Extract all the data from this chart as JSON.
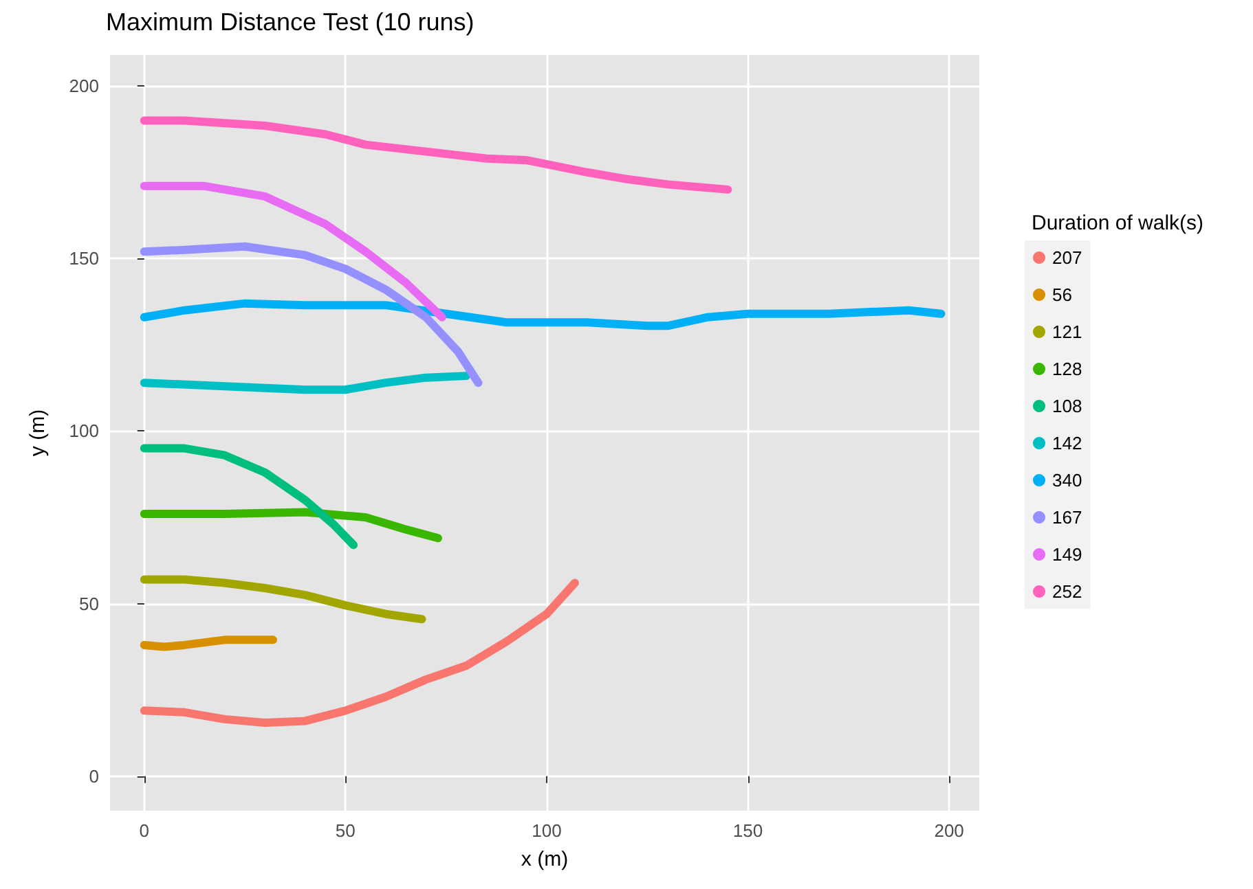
{
  "chart_data": {
    "type": "line",
    "title": "Maximum Distance Test (10 runs)",
    "xlabel": "x (m)",
    "ylabel": "y (m)",
    "legend_title": "Duration of walk(s)",
    "legend": "right",
    "grid": true,
    "marker": "none",
    "line_style": "solid",
    "xlim": [
      -8.5,
      207.5
    ],
    "ylim": [
      -10,
      209
    ],
    "xticks": [
      0,
      50,
      100,
      150,
      200
    ],
    "yticks": [
      0,
      50,
      100,
      150,
      200
    ],
    "series": [
      {
        "name": "207",
        "color": "#f8766d",
        "x": [
          0,
          10,
          20,
          30,
          40,
          50,
          60,
          70,
          80,
          90,
          100,
          107
        ],
        "values": [
          19,
          18.5,
          16.5,
          15.5,
          16,
          19,
          23,
          28,
          32,
          39,
          47,
          56
        ]
      },
      {
        "name": "56",
        "color": "#d89000",
        "x": [
          0,
          5,
          10,
          20,
          32
        ],
        "values": [
          38,
          37.5,
          38,
          39.5,
          39.5
        ]
      },
      {
        "name": "121",
        "color": "#a3a500",
        "x": [
          0,
          10,
          20,
          30,
          40,
          50,
          60,
          69
        ],
        "values": [
          57,
          57,
          56,
          54.5,
          52.5,
          49.5,
          47,
          45.5
        ]
      },
      {
        "name": "128",
        "color": "#39b600",
        "x": [
          0,
          20,
          40,
          55,
          65,
          73
        ],
        "values": [
          76,
          76,
          76.5,
          75,
          71.5,
          69
        ]
      },
      {
        "name": "108",
        "color": "#00bf7d",
        "x": [
          0,
          10,
          20,
          30,
          40,
          47,
          52
        ],
        "values": [
          95,
          95,
          93,
          88,
          80,
          73,
          67
        ]
      },
      {
        "name": "142",
        "color": "#00bfc4",
        "x": [
          0,
          20,
          40,
          50,
          60,
          70,
          80
        ],
        "values": [
          114,
          113,
          112,
          112,
          114,
          115.5,
          116
        ]
      },
      {
        "name": "340",
        "color": "#00b0f6",
        "x": [
          0,
          10,
          25,
          40,
          60,
          75,
          90,
          110,
          125,
          130,
          140,
          150,
          170,
          190,
          198
        ],
        "values": [
          133,
          135,
          137,
          136.5,
          136.5,
          134,
          131.5,
          131.5,
          130.5,
          130.5,
          133,
          134,
          134,
          135,
          134
        ]
      },
      {
        "name": "167",
        "color": "#9590ff",
        "x": [
          0,
          10,
          25,
          40,
          50,
          60,
          70,
          78,
          83
        ],
        "values": [
          152,
          152.5,
          153.5,
          151,
          147,
          141,
          133,
          123,
          114
        ]
      },
      {
        "name": "149",
        "color": "#e76bf3",
        "x": [
          0,
          15,
          30,
          45,
          55,
          65,
          74
        ],
        "values": [
          171,
          171,
          168,
          160,
          152,
          143,
          133
        ]
      },
      {
        "name": "252",
        "color": "#ff62bc",
        "x": [
          0,
          10,
          30,
          45,
          55,
          70,
          85,
          95,
          110,
          120,
          130,
          145
        ],
        "values": [
          190,
          190,
          188.5,
          186,
          183,
          181,
          179,
          178.5,
          175,
          173,
          171.5,
          170
        ]
      }
    ]
  }
}
